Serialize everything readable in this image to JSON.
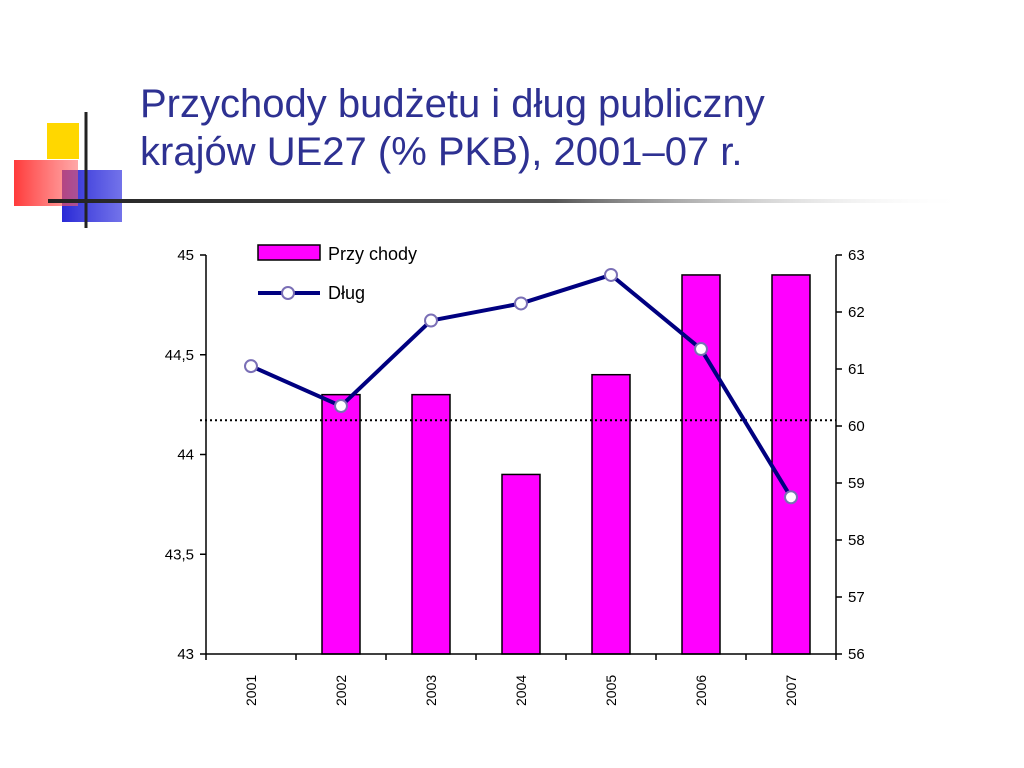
{
  "slide": {
    "title_line1": "Przychody budżetu i dług publiczny",
    "title_line2": "krajów UE27 (% PKB), 2001–07 r."
  },
  "colors": {
    "title": "#2e3192",
    "bar_fill": "#ff00ff",
    "line": "#000080",
    "marker_fill": "#ffffff",
    "marker_stroke": "#7a6fb6",
    "deco_yellow": "#ffd700",
    "deco_red": "#ff4d4d",
    "deco_blue": "#3030d0"
  },
  "chart_data": {
    "type": "bar",
    "categories": [
      "2001",
      "2002",
      "2003",
      "2004",
      "2005",
      "2006",
      "2007"
    ],
    "series": [
      {
        "name": "Przy chody",
        "type": "bar",
        "axis": "left",
        "values": [
          null,
          44.3,
          44.3,
          43.9,
          44.4,
          44.9,
          44.9
        ]
      },
      {
        "name": "Dług",
        "type": "line",
        "axis": "right",
        "values": [
          61.05,
          60.35,
          61.85,
          62.15,
          62.65,
          61.35,
          58.75
        ]
      }
    ],
    "left_axis": {
      "ylim": [
        43,
        45
      ],
      "ticks": [
        43,
        43.5,
        44,
        44.5,
        45
      ],
      "tick_labels": [
        "43",
        "43,5",
        "44",
        "44,5",
        "45"
      ]
    },
    "right_axis": {
      "ylim": [
        56,
        63
      ],
      "ticks": [
        56,
        57,
        58,
        59,
        60,
        61,
        62,
        63
      ],
      "tick_labels": [
        "56",
        "57",
        "58",
        "59",
        "60",
        "61",
        "62",
        "63"
      ]
    },
    "reference_line": {
      "axis": "right",
      "value": 60.1,
      "style": "dotted"
    },
    "legend_position": "top-left",
    "grid": false
  }
}
